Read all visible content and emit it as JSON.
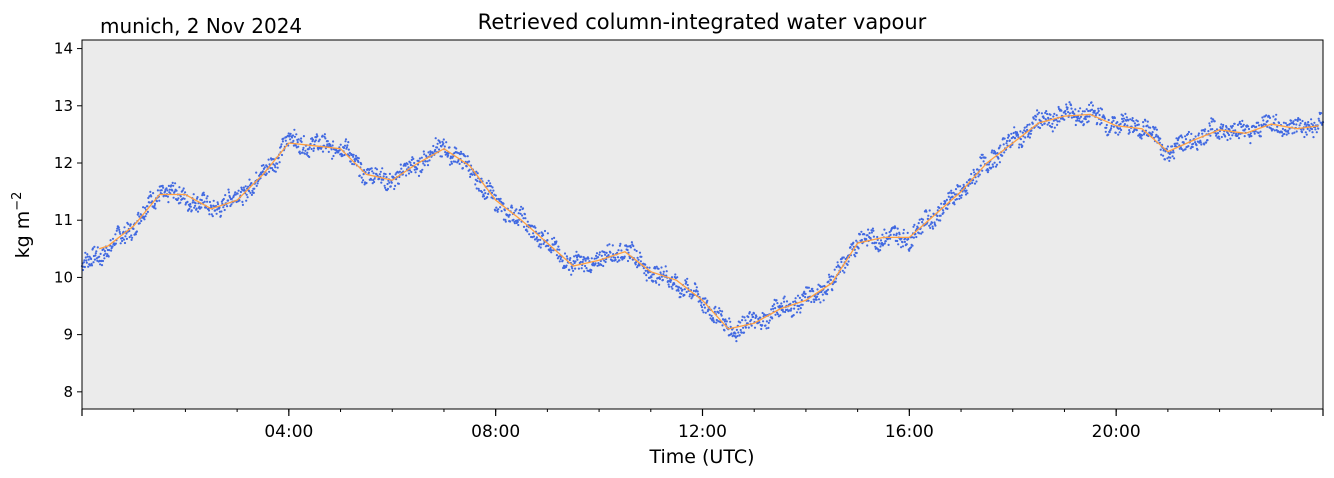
{
  "chart_data": {
    "type": "line",
    "title": "Retrieved column-integrated water vapour",
    "location_date": "munich, 2 Nov 2024",
    "xlabel": "Time (UTC)",
    "ylabel": "kg m",
    "ylabel_superscript": "−2",
    "xlim": [
      "00:00",
      "24:00"
    ],
    "ylim": [
      7.7,
      14.15
    ],
    "x_ticks": [
      "04:00",
      "08:00",
      "12:00",
      "16:00",
      "20:00"
    ],
    "y_ticks": [
      8,
      9,
      10,
      11,
      12,
      13,
      14
    ],
    "grid": false,
    "colors": {
      "background": "#ebebeb",
      "raw": "#4169e1",
      "smooth": "#ff9f40"
    },
    "series": [
      {
        "role": "raw",
        "style": "scatter",
        "spread": 0.15,
        "x": [
          "00:00",
          "00:30",
          "01:00",
          "01:30",
          "02:00",
          "02:30",
          "03:00",
          "03:30",
          "04:00",
          "04:30",
          "05:00",
          "05:30",
          "06:00",
          "06:30",
          "07:00",
          "07:30",
          "08:00",
          "08:30",
          "09:00",
          "09:30",
          "10:00",
          "10:30",
          "11:00",
          "11:30",
          "12:00",
          "12:30",
          "13:00",
          "13:30",
          "14:00",
          "14:30",
          "15:00",
          "15:30",
          "16:00",
          "16:30",
          "17:00",
          "17:30",
          "18:00",
          "18:30",
          "19:00",
          "19:30",
          "20:00",
          "20:30",
          "21:00",
          "21:30",
          "22:00",
          "22:30",
          "23:00",
          "23:30",
          "24:00"
        ],
        "values": [
          10.2,
          10.5,
          10.9,
          11.5,
          11.4,
          11.2,
          11.4,
          11.8,
          12.4,
          12.3,
          12.3,
          11.8,
          11.7,
          12.0,
          12.3,
          11.9,
          11.3,
          11.0,
          10.6,
          10.2,
          10.3,
          10.5,
          10.1,
          9.9,
          9.6,
          9.1,
          9.2,
          9.45,
          9.6,
          9.9,
          10.65,
          10.7,
          10.7,
          11.1,
          11.5,
          12.0,
          12.4,
          12.7,
          12.85,
          12.85,
          12.65,
          12.65,
          12.2,
          12.4,
          12.6,
          12.55,
          12.7,
          12.6,
          12.7
        ]
      },
      {
        "role": "smoothed",
        "style": "line",
        "x": [
          "00:20",
          "00:30",
          "01:00",
          "01:30",
          "02:00",
          "02:30",
          "03:00",
          "03:30",
          "04:00",
          "04:30",
          "05:00",
          "05:30",
          "06:00",
          "06:30",
          "07:00",
          "07:30",
          "08:00",
          "08:30",
          "09:00",
          "09:30",
          "10:00",
          "10:30",
          "11:00",
          "11:30",
          "12:00",
          "12:30",
          "13:00",
          "13:30",
          "14:00",
          "14:30",
          "15:00",
          "15:30",
          "16:00",
          "16:30",
          "17:00",
          "17:30",
          "18:00",
          "18:30",
          "19:00",
          "19:30",
          "20:00",
          "20:30",
          "21:00",
          "21:30",
          "22:00",
          "22:30",
          "23:00",
          "23:30",
          "23:55"
        ],
        "values": [
          10.5,
          10.55,
          10.9,
          11.45,
          11.45,
          11.2,
          11.35,
          11.8,
          12.35,
          12.3,
          12.25,
          11.8,
          11.7,
          12.0,
          12.25,
          11.95,
          11.35,
          11.0,
          10.6,
          10.2,
          10.3,
          10.45,
          10.1,
          9.95,
          9.6,
          9.1,
          9.2,
          9.45,
          9.6,
          9.9,
          10.6,
          10.7,
          10.7,
          11.1,
          11.5,
          12.0,
          12.35,
          12.7,
          12.82,
          12.85,
          12.65,
          12.6,
          12.2,
          12.4,
          12.58,
          12.52,
          12.68,
          12.6,
          12.65
        ]
      }
    ]
  }
}
